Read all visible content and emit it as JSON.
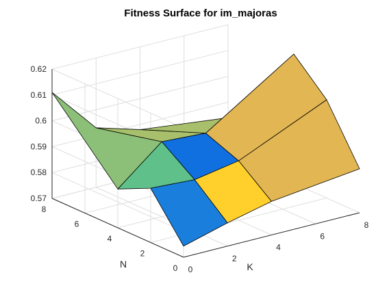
{
  "chart_data": {
    "type": "surface",
    "title": "Fitness Surface for im_majoras",
    "xlabel": "K",
    "ylabel": "N",
    "K": [
      0,
      2,
      4,
      8
    ],
    "N": [
      0,
      2,
      4,
      8
    ],
    "z": [
      [
        0.5743,
        0.579,
        0.583,
        0.587
      ],
      [
        0.591,
        0.59,
        0.593,
        0.608
      ],
      [
        0.585,
        0.599,
        0.598,
        0.62
      ],
      [
        0.611,
        0.593,
        0.588,
        0.584
      ]
    ],
    "xlim": [
      0,
      8
    ],
    "ylim": [
      0,
      8
    ],
    "zlim": [
      0.57,
      0.62
    ],
    "xticks": [
      "0",
      "2",
      "4",
      "6",
      "8"
    ],
    "yticks": [
      "0",
      "2",
      "4",
      "6",
      "8"
    ],
    "zticks": [
      "0.57",
      "0.58",
      "0.59",
      "0.6",
      "0.61",
      "0.62"
    ],
    "grid": true,
    "colors": {
      "face_low": "#FFD02B",
      "face_mid_a": "#E2B652",
      "face_mid_b": "#A8C06C",
      "face_mid_c": "#8CC078",
      "face_mid_d": "#5FC08A",
      "face_cyan": "#0FADB8",
      "face_blue": "#1A7FDC",
      "face_deep": "#1070E0",
      "grid": "#dedede",
      "axis": "#262626"
    }
  }
}
